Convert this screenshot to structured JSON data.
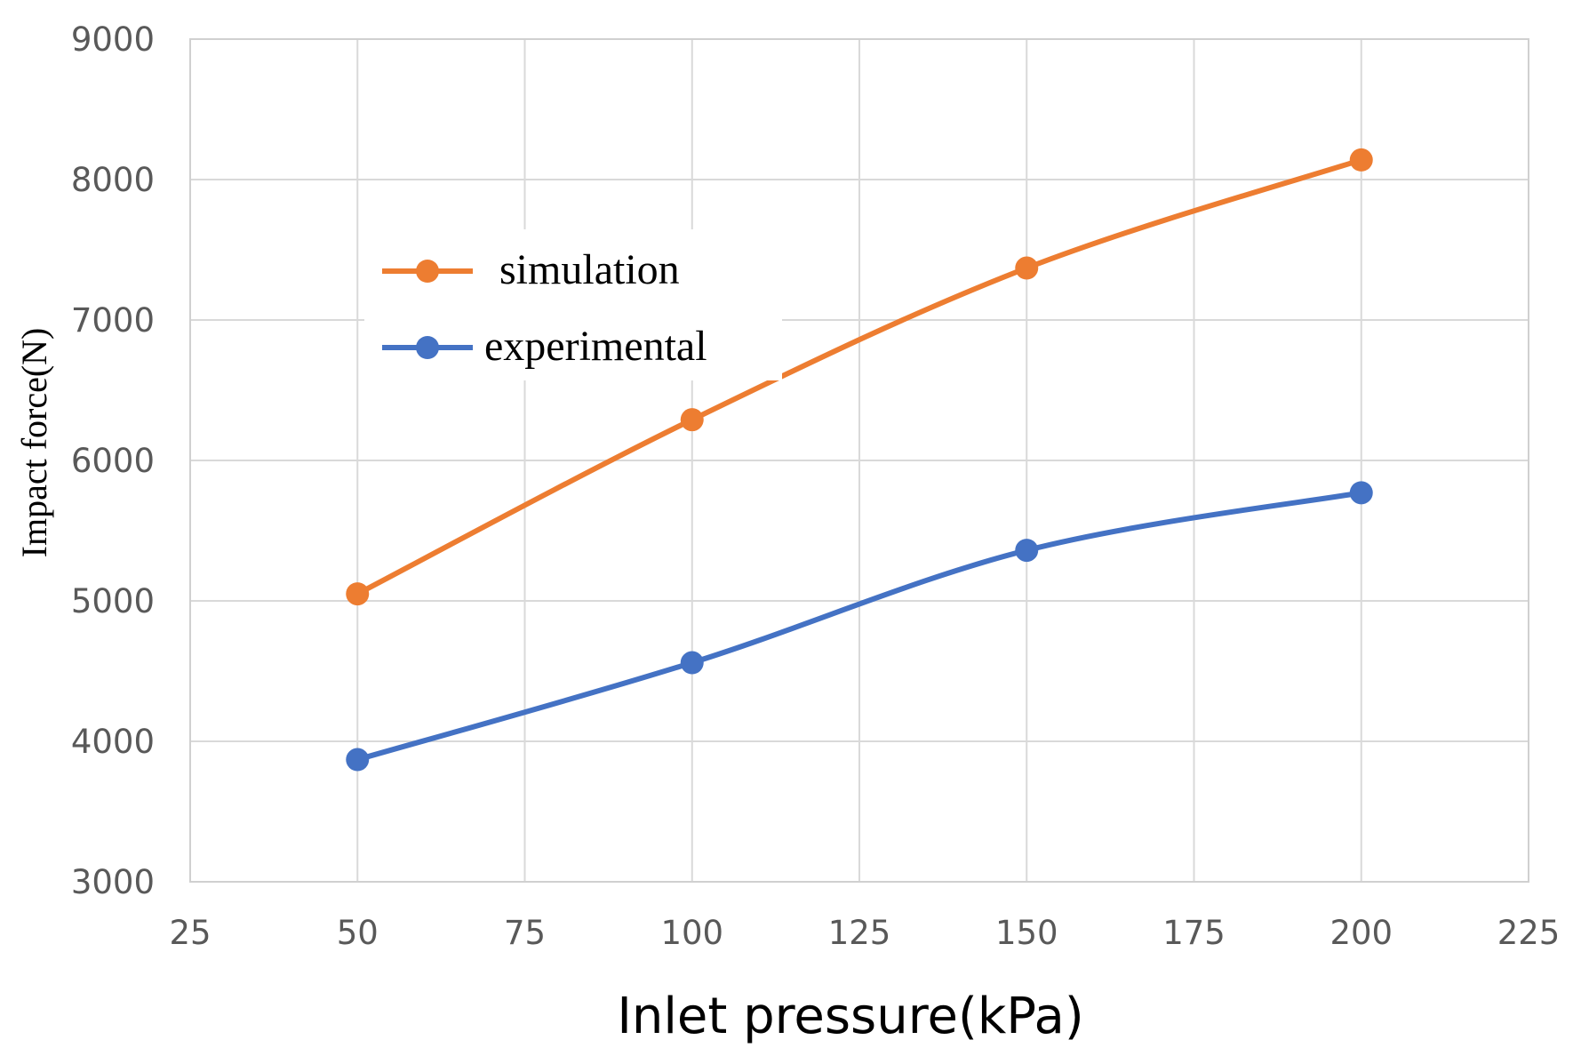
{
  "chart_data": {
    "type": "line",
    "title": "",
    "xlabel": "Inlet pressure(kPa)",
    "ylabel": "Impact force(N)",
    "xlim": [
      25,
      225
    ],
    "ylim": [
      3000,
      9000
    ],
    "x_ticks": [
      25,
      50,
      75,
      100,
      125,
      150,
      175,
      200,
      225
    ],
    "y_ticks": [
      3000,
      4000,
      5000,
      6000,
      7000,
      8000,
      9000
    ],
    "grid": true,
    "smooth_lines": true,
    "legend_position": "upper-left inside plot",
    "x": [
      50,
      100,
      150,
      200
    ],
    "series": [
      {
        "name": "simulation",
        "color": "#ED7D31",
        "values": [
          5050,
          6290,
          7370,
          8140
        ]
      },
      {
        "name": "experimental",
        "color": "#4472C4",
        "values": [
          3870,
          4560,
          5360,
          5770
        ]
      }
    ]
  }
}
